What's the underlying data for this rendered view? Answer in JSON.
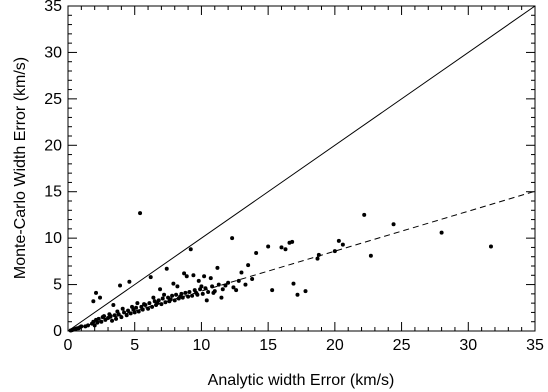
{
  "chart_data": {
    "type": "scatter",
    "xlabel": "Analytic width Error (km/s)",
    "ylabel": "Monte-Carlo Width Error (km/s)",
    "xlim": [
      0,
      35
    ],
    "ylim": [
      0,
      35
    ],
    "xticks": [
      0,
      5,
      10,
      15,
      20,
      25,
      30,
      35
    ],
    "yticks": [
      0,
      5,
      10,
      15,
      20,
      25,
      30,
      35
    ],
    "grid": false,
    "reference_lines": [
      {
        "style": "solid",
        "slope": 1.0,
        "intercept": 0
      },
      {
        "style": "dashed",
        "slope": 0.43,
        "intercept": 0
      }
    ],
    "series": [
      {
        "points": [
          [
            0.2,
            0.05
          ],
          [
            0.3,
            0.1
          ],
          [
            0.4,
            0.15
          ],
          [
            0.5,
            0.2
          ],
          [
            0.6,
            0.25
          ],
          [
            0.7,
            0.3
          ],
          [
            0.8,
            0.3
          ],
          [
            0.9,
            0.4
          ],
          [
            1.0,
            0.5
          ],
          [
            1.3,
            0.5
          ],
          [
            1.5,
            0.6
          ],
          [
            1.8,
            0.8
          ],
          [
            1.9,
            1.0
          ],
          [
            2.0,
            0.6
          ],
          [
            2.1,
            1.2
          ],
          [
            2.2,
            0.9
          ],
          [
            2.3,
            1.3
          ],
          [
            2.5,
            1.0
          ],
          [
            2.6,
            1.5
          ],
          [
            2.8,
            1.2
          ],
          [
            3.0,
            1.4
          ],
          [
            3.2,
            1.6
          ],
          [
            3.3,
            1.1
          ],
          [
            3.5,
            1.7
          ],
          [
            3.6,
            1.3
          ],
          [
            3.8,
            1.8
          ],
          [
            4.0,
            1.5
          ],
          [
            4.2,
            2.0
          ],
          [
            4.4,
            1.7
          ],
          [
            4.5,
            2.2
          ],
          [
            4.7,
            1.9
          ],
          [
            4.9,
            2.3
          ],
          [
            5.0,
            2.0
          ],
          [
            5.1,
            2.5
          ],
          [
            5.3,
            2.1
          ],
          [
            5.5,
            2.6
          ],
          [
            5.6,
            2.3
          ],
          [
            5.8,
            2.8
          ],
          [
            6.0,
            2.4
          ],
          [
            6.1,
            3.0
          ],
          [
            6.3,
            2.6
          ],
          [
            6.5,
            3.2
          ],
          [
            6.6,
            2.8
          ],
          [
            6.8,
            3.3
          ],
          [
            7.0,
            2.9
          ],
          [
            7.1,
            3.5
          ],
          [
            7.3,
            3.1
          ],
          [
            7.5,
            3.6
          ],
          [
            7.6,
            3.2
          ],
          [
            7.8,
            3.8
          ],
          [
            8.0,
            3.3
          ],
          [
            8.1,
            3.9
          ],
          [
            8.3,
            3.5
          ],
          [
            8.5,
            4.0
          ],
          [
            8.6,
            3.6
          ],
          [
            8.8,
            4.1
          ],
          [
            9.0,
            3.7
          ],
          [
            9.1,
            4.2
          ],
          [
            9.3,
            3.8
          ],
          [
            9.5,
            4.4
          ],
          [
            9.7,
            3.9
          ],
          [
            9.9,
            4.5
          ],
          [
            10.1,
            4.0
          ],
          [
            10.3,
            4.6
          ],
          [
            10.5,
            4.2
          ],
          [
            10.8,
            4.8
          ],
          [
            11.0,
            4.3
          ],
          [
            11.3,
            5.0
          ],
          [
            11.6,
            4.5
          ],
          [
            12.0,
            5.2
          ],
          [
            12.4,
            4.7
          ],
          [
            12.8,
            5.4
          ],
          [
            13.3,
            5.0
          ],
          [
            13.8,
            5.6
          ],
          [
            1.9,
            3.2
          ],
          [
            2.1,
            4.1
          ],
          [
            2.4,
            3.6
          ],
          [
            3.4,
            2.8
          ],
          [
            3.9,
            4.9
          ],
          [
            4.6,
            5.3
          ],
          [
            5.2,
            3.0
          ],
          [
            5.4,
            12.7
          ],
          [
            6.2,
            5.8
          ],
          [
            6.9,
            4.5
          ],
          [
            7.4,
            6.7
          ],
          [
            7.9,
            5.1
          ],
          [
            8.2,
            4.8
          ],
          [
            8.7,
            6.2
          ],
          [
            8.9,
            5.9
          ],
          [
            9.2,
            8.8
          ],
          [
            9.4,
            6.0
          ],
          [
            9.8,
            5.4
          ],
          [
            10.2,
            5.9
          ],
          [
            10.7,
            5.7
          ],
          [
            11.2,
            6.8
          ],
          [
            11.5,
            3.6
          ],
          [
            12.3,
            10.0
          ],
          [
            13.0,
            6.3
          ],
          [
            13.5,
            7.1
          ],
          [
            14.1,
            8.4
          ],
          [
            15.0,
            9.1
          ],
          [
            15.3,
            4.4
          ],
          [
            16.0,
            9.0
          ],
          [
            16.3,
            8.8
          ],
          [
            16.6,
            9.5
          ],
          [
            16.8,
            9.6
          ],
          [
            16.9,
            5.1
          ],
          [
            17.2,
            3.9
          ],
          [
            17.8,
            4.3
          ],
          [
            18.7,
            7.8
          ],
          [
            18.8,
            8.2
          ],
          [
            20.0,
            8.6
          ],
          [
            20.3,
            9.7
          ],
          [
            20.6,
            9.3
          ],
          [
            22.2,
            12.5
          ],
          [
            22.7,
            8.1
          ],
          [
            24.4,
            11.5
          ],
          [
            28.0,
            10.6
          ],
          [
            31.7,
            9.1
          ],
          [
            2.7,
            1.6
          ],
          [
            3.1,
            1.8
          ],
          [
            3.7,
            2.1
          ],
          [
            4.1,
            2.4
          ],
          [
            4.8,
            2.6
          ],
          [
            5.7,
            2.9
          ],
          [
            6.4,
            3.6
          ],
          [
            6.7,
            3.0
          ],
          [
            7.2,
            3.9
          ],
          [
            7.7,
            3.4
          ],
          [
            8.4,
            3.7
          ],
          [
            9.6,
            4.1
          ],
          [
            10.0,
            4.8
          ],
          [
            10.4,
            3.3
          ],
          [
            10.9,
            4.1
          ],
          [
            11.8,
            4.9
          ],
          [
            12.6,
            4.4
          ]
        ]
      }
    ]
  }
}
